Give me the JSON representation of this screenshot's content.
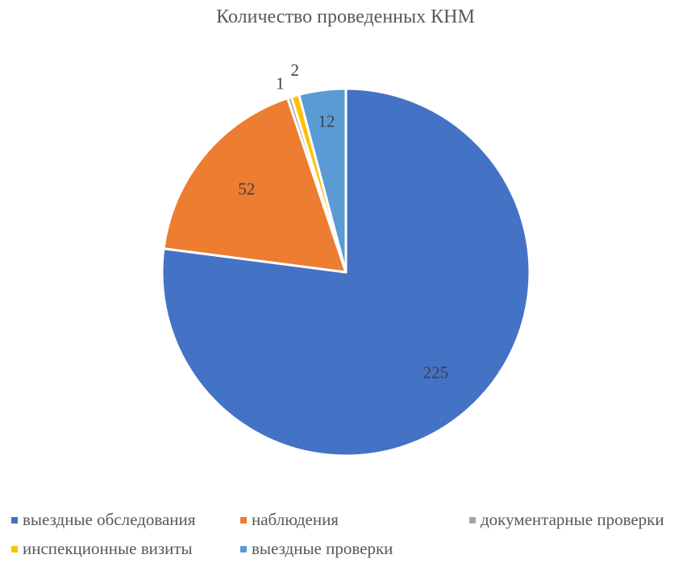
{
  "chart_data": {
    "type": "pie",
    "title": "Количество проведенных КНМ",
    "slices": [
      {
        "label": "выездные обследования",
        "value": 225,
        "value_label": "225",
        "color": "#4472C4"
      },
      {
        "label": "наблюдения",
        "value": 52,
        "value_label": "52",
        "color": "#ED7D31"
      },
      {
        "label": "документарные проверки",
        "value": 1,
        "value_label": "1",
        "color": "#A5A5A5"
      },
      {
        "label": "инспекционные визиты",
        "value": 2,
        "value_label": "2",
        "color": "#FFC000"
      },
      {
        "label": "выездные проверки",
        "value": 12,
        "value_label": "12",
        "color": "#5B9BD5"
      }
    ],
    "legend_position": "bottom"
  }
}
